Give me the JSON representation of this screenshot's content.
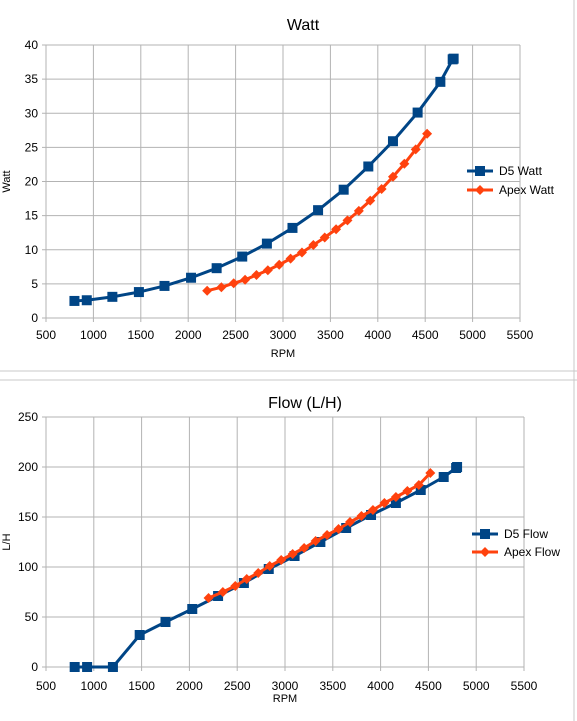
{
  "chart_data": [
    {
      "type": "line",
      "title": "Watt",
      "xlabel": "RPM",
      "ylabel": "Watt",
      "xlim": [
        500,
        5500
      ],
      "ylim": [
        0,
        40
      ],
      "x_ticks": [
        500,
        1000,
        1500,
        2000,
        2500,
        3000,
        3500,
        4000,
        4500,
        5000,
        5500
      ],
      "y_ticks": [
        0,
        5,
        10,
        15,
        20,
        25,
        30,
        35,
        40
      ],
      "grid": true,
      "legend_position": "right",
      "series": [
        {
          "name": "D5 Watt",
          "color": "#004586",
          "marker": "square",
          "x": [
            800,
            930,
            1200,
            1480,
            1750,
            2030,
            2300,
            2570,
            2830,
            3100,
            3370,
            3640,
            3900,
            4160,
            4420,
            4660,
            4790,
            4800
          ],
          "y": [
            2.5,
            2.6,
            3.1,
            3.8,
            4.7,
            5.9,
            7.3,
            9.0,
            10.9,
            13.2,
            15.8,
            18.8,
            22.2,
            25.9,
            30.1,
            34.6,
            37.9,
            38.0
          ]
        },
        {
          "name": "Apex Watt",
          "color": "#ff420e",
          "marker": "diamond",
          "x": [
            2200,
            2350,
            2480,
            2600,
            2720,
            2840,
            2960,
            3080,
            3200,
            3320,
            3440,
            3560,
            3680,
            3800,
            3920,
            4040,
            4160,
            4280,
            4400,
            4520
          ],
          "y": [
            4.0,
            4.5,
            5.1,
            5.6,
            6.3,
            7.0,
            7.8,
            8.7,
            9.6,
            10.7,
            11.8,
            13.0,
            14.3,
            15.7,
            17.2,
            18.9,
            20.7,
            22.6,
            24.7,
            27.0
          ]
        }
      ]
    },
    {
      "type": "line",
      "title": "Flow (L/H)",
      "xlabel": "RPM",
      "ylabel": "L/H",
      "xlim": [
        500,
        5500
      ],
      "ylim": [
        0,
        250
      ],
      "x_ticks": [
        500,
        1000,
        1500,
        2000,
        2500,
        3000,
        3500,
        4000,
        4500,
        5000,
        5500
      ],
      "y_ticks": [
        0,
        50,
        100,
        150,
        200,
        250
      ],
      "grid": true,
      "legend_position": "right",
      "series": [
        {
          "name": "D5 Flow",
          "color": "#004586",
          "marker": "square",
          "x": [
            800,
            930,
            1200,
            1480,
            1750,
            2030,
            2300,
            2570,
            2830,
            3100,
            3370,
            3640,
            3900,
            4160,
            4420,
            4660,
            4790,
            4800
          ],
          "y": [
            0,
            0,
            0,
            32,
            45,
            58,
            71,
            84,
            98,
            111,
            125,
            139,
            152,
            164,
            177,
            190,
            199,
            200
          ]
        },
        {
          "name": "Apex Flow",
          "color": "#ff420e",
          "marker": "diamond",
          "x": [
            2200,
            2350,
            2480,
            2600,
            2720,
            2840,
            2960,
            3080,
            3200,
            3320,
            3440,
            3560,
            3680,
            3800,
            3920,
            4040,
            4160,
            4280,
            4400,
            4520
          ],
          "y": [
            69,
            75,
            81,
            88,
            94,
            101,
            107,
            113,
            119,
            126,
            132,
            138,
            145,
            151,
            157,
            164,
            170,
            176,
            182,
            194
          ]
        }
      ]
    }
  ]
}
